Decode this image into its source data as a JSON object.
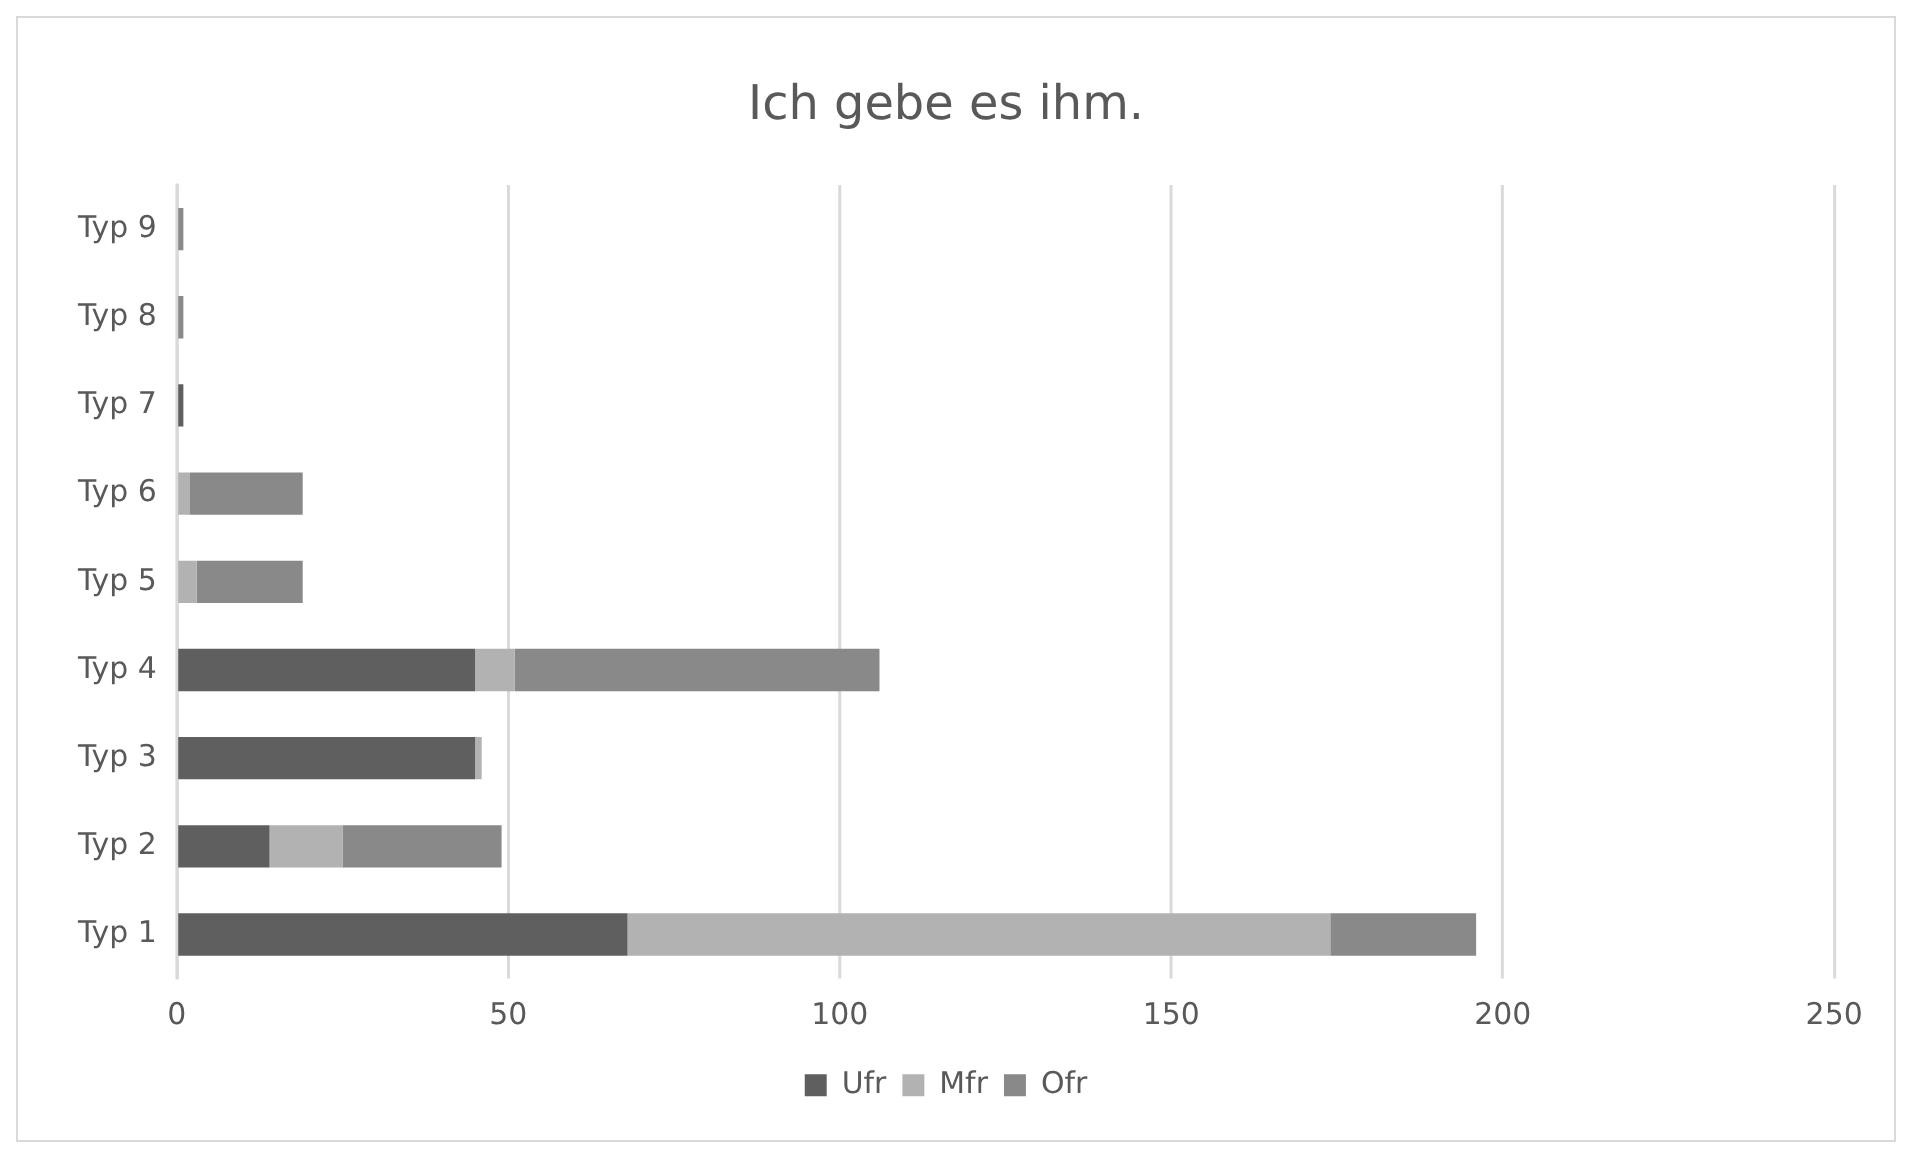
{
  "chart_data": {
    "type": "bar",
    "orientation": "horizontal",
    "stacked": true,
    "title": "Ich gebe es ihm.",
    "categories": [
      "Typ 9",
      "Typ 8",
      "Typ 7",
      "Typ 6",
      "Typ 5",
      "Typ 4",
      "Typ 3",
      "Typ 2",
      "Typ 1"
    ],
    "series": [
      {
        "name": "Ufr",
        "color": "#5f5f5f",
        "values": [
          0,
          0,
          1,
          0,
          0,
          45,
          45,
          14,
          68
        ]
      },
      {
        "name": "Mfr",
        "color": "#b2b2b2",
        "values": [
          0,
          0,
          0,
          2,
          3,
          6,
          1,
          11,
          106
        ]
      },
      {
        "name": "Ofr",
        "color": "#898989",
        "values": [
          1,
          1,
          0,
          17,
          16,
          55,
          0,
          24,
          22
        ]
      }
    ],
    "xlim": [
      0,
      250
    ],
    "xticks": [
      0,
      50,
      100,
      150,
      200,
      250
    ],
    "grid": "x",
    "legend": "bottom"
  }
}
